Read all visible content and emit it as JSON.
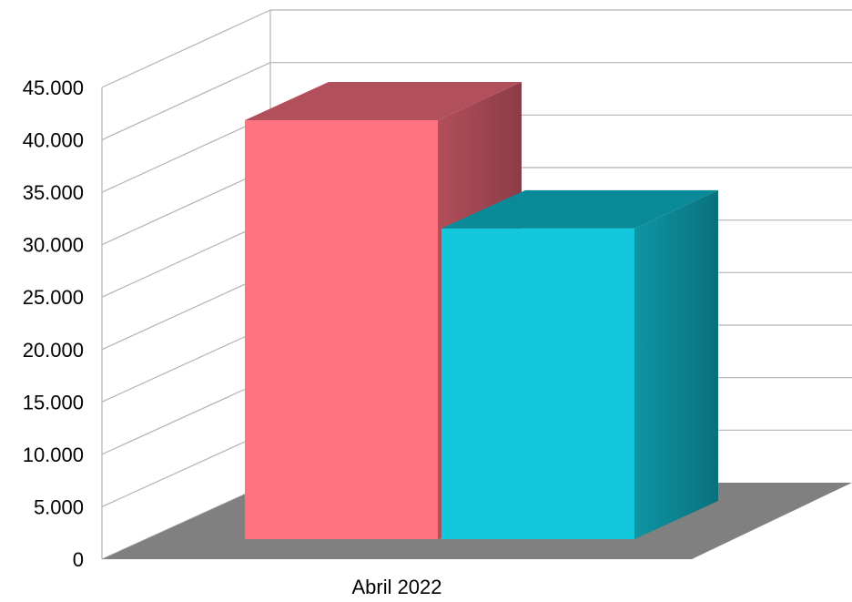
{
  "chart_data": {
    "type": "bar",
    "style": "3d",
    "categories": [
      "Abril 2022"
    ],
    "series": [
      {
        "values": [
          41800
        ],
        "color": "#ff7380",
        "top_color": "#b14f5a",
        "side_color": "#9c4550"
      },
      {
        "values": [
          31000
        ],
        "color": "#13c8dc",
        "top_color": "#0a8a98",
        "side_color": "#0d7f8c"
      }
    ],
    "y_ticks": [
      "0",
      "5.000",
      "10.000",
      "15.000",
      "20.000",
      "25.000",
      "30.000",
      "35.000",
      "40.000",
      "45.000"
    ],
    "ylim": [
      0,
      45000
    ],
    "grid": true,
    "floor_color": "#808080",
    "grid_color": "#b3b3b3",
    "title": "",
    "xlabel": "",
    "ylabel": ""
  }
}
